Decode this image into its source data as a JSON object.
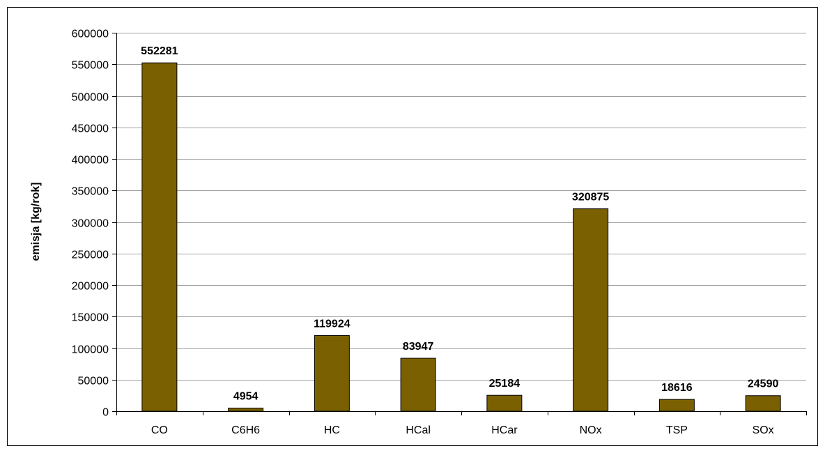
{
  "chart_data": {
    "type": "bar",
    "categories": [
      "CO",
      "C6H6",
      "HC",
      "HCal",
      "HCar",
      "NOx",
      "TSP",
      "SOx"
    ],
    "values": [
      552281,
      4954,
      119924,
      83947,
      25184,
      320875,
      18616,
      24590
    ],
    "value_labels": [
      "552281",
      "4954",
      "119924",
      "83947",
      "25184",
      "320875",
      "18616",
      "24590"
    ],
    "title": "",
    "xlabel": "",
    "ylabel": "emisja [kg/rok]",
    "ylim": [
      0,
      600000
    ],
    "yticks": [
      0,
      50000,
      100000,
      150000,
      200000,
      250000,
      300000,
      350000,
      400000,
      450000,
      500000,
      550000,
      600000
    ],
    "grid": true,
    "legend": "none",
    "colors": {
      "bar_fill": "#7A6000",
      "bar_stroke": "#000000",
      "grid": "#A0A0A0",
      "axis": "#000000"
    }
  }
}
